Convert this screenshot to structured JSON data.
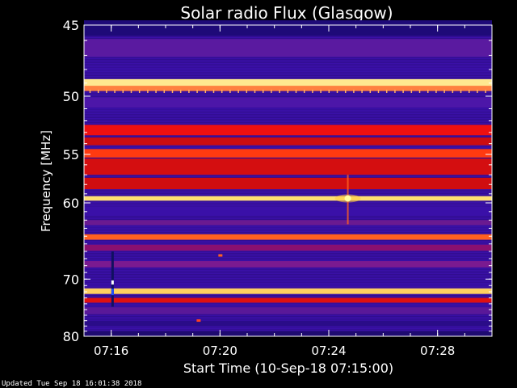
{
  "chart_data": {
    "type": "heatmap",
    "title": "Solar radio Flux (Glasgow)",
    "xlabel": "Start Time (10-Sep-18 07:15:00)",
    "ylabel": "Frequency [MHz]",
    "x_ticks": [
      {
        "label": "07:16",
        "minute": 1
      },
      {
        "label": "07:20",
        "minute": 5
      },
      {
        "label": "07:24",
        "minute": 9
      },
      {
        "label": "07:28",
        "minute": 13
      }
    ],
    "y_ticks": [
      {
        "label": "45",
        "value": 45
      },
      {
        "label": "50",
        "value": 50
      },
      {
        "label": "55",
        "value": 55
      },
      {
        "label": "60",
        "value": 60
      },
      {
        "label": "70",
        "value": 70
      },
      {
        "label": "80",
        "value": 80
      }
    ],
    "x_range_minutes": [
      0,
      15
    ],
    "y_range_mhz": [
      45,
      80
    ],
    "y_scale": "reciprocal",
    "background_color": "#3a10a8",
    "bands": [
      {
        "mhz": 45.2,
        "color": "#1e0a78",
        "height": 1.0
      },
      {
        "mhz": 46.5,
        "color": "#5a1aa0",
        "height": 1.2
      },
      {
        "mhz": 49.0,
        "color": "#ffe890",
        "height": 0.6
      },
      {
        "mhz": 49.4,
        "color": "#ff8040",
        "height": 0.4
      },
      {
        "mhz": 50.5,
        "color": "#4c16a8",
        "height": 0.8
      },
      {
        "mhz": 52.8,
        "color": "#ee1010",
        "height": 0.9
      },
      {
        "mhz": 53.8,
        "color": "#cc0d10",
        "height": 0.7
      },
      {
        "mhz": 54.9,
        "color": "#ff3a10",
        "height": 0.8
      },
      {
        "mhz": 56.2,
        "color": "#d40e10",
        "height": 1.6
      },
      {
        "mhz": 57.9,
        "color": "#d00d10",
        "height": 1.2
      },
      {
        "mhz": 59.5,
        "color": "#ffe070",
        "height": 0.5
      },
      {
        "mhz": 61.0,
        "color": "#3a10a8",
        "height": 0.9
      },
      {
        "mhz": 62.3,
        "color": "#6a1a90",
        "height": 0.6
      },
      {
        "mhz": 64.1,
        "color": "#ff6020",
        "height": 0.7
      },
      {
        "mhz": 65.5,
        "color": "#8a1070",
        "height": 0.8
      },
      {
        "mhz": 67.8,
        "color": "#7a1a90",
        "height": 0.9
      },
      {
        "mhz": 71.9,
        "color": "#ffd060",
        "height": 0.9
      },
      {
        "mhz": 73.4,
        "color": "#e01010",
        "height": 0.8
      },
      {
        "mhz": 75.2,
        "color": "#5a1898",
        "height": 1.2
      },
      {
        "mhz": 77.5,
        "color": "#2a0c88",
        "height": 1.0
      },
      {
        "mhz": 79.5,
        "color": "#1e0a70",
        "height": 1.0
      }
    ],
    "burst": {
      "minute": 9.7,
      "mhz": 59.5,
      "color": "#ffffa0"
    },
    "spikes": [
      {
        "minute": 5.0,
        "mhz": 66.5,
        "color": "#ff6020"
      },
      {
        "minute": 4.2,
        "mhz": 76.9,
        "color": "#ff4020"
      }
    ],
    "artifact_column": {
      "minute": 1.05,
      "mhz_from": 66.0,
      "mhz_to": 74.5
    }
  },
  "footer": {
    "updated": "Updated Tue Sep 18 16:01:38 2018"
  }
}
